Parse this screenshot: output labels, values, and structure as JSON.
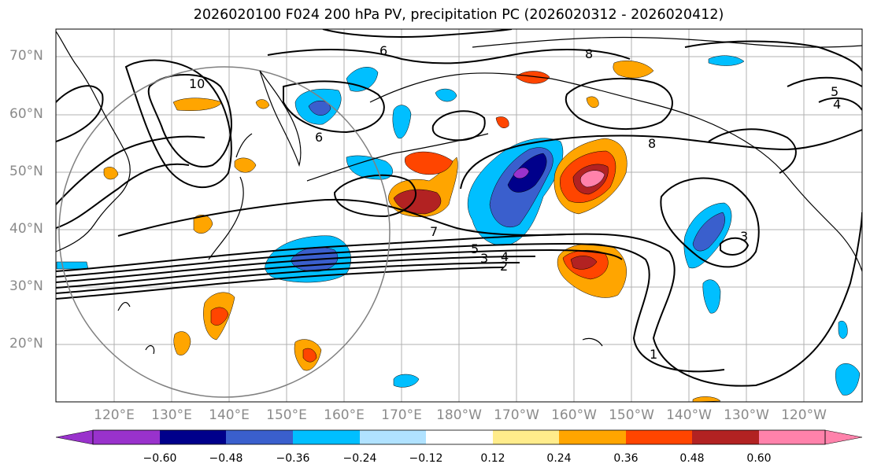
{
  "title": "2026020100 F024 200 hPa PV, precipitation PC (2026020312 - 2026020412)",
  "lat_labels": [
    "70°N",
    "60°N",
    "50°N",
    "40°N",
    "30°N",
    "20°N"
  ],
  "lon_labels": [
    "120°E",
    "130°E",
    "140°E",
    "150°E",
    "160°E",
    "170°E",
    "180°W",
    "170°W",
    "160°W",
    "150°W",
    "140°W",
    "130°W",
    "120°W"
  ],
  "contour_labels": [
    "1",
    "2",
    "3",
    "4",
    "5",
    "6",
    "7",
    "8",
    "10",
    "3",
    "4",
    "5",
    "6",
    "8"
  ],
  "colorbar": {
    "ticks": [
      "−0.60",
      "−0.48",
      "−0.36",
      "−0.24",
      "−0.12",
      "0.12",
      "0.24",
      "0.36",
      "0.48",
      "0.60"
    ],
    "colors": [
      "#9932cc",
      "#00008b",
      "#3a5fcd",
      "#00bfff",
      "#b0e2ff",
      "#ffffff",
      "#ffec8b",
      "#ffa500",
      "#ff4500",
      "#b22222",
      "#ff82ab"
    ]
  },
  "legend_colors": {
    "purple": "#9932cc",
    "navy": "#00008b",
    "blue": "#3a5fcd",
    "cyan": "#00bfff",
    "lightblue": "#b0e2ff",
    "yellow": "#ffec8b",
    "orange": "#ffa500",
    "redorange": "#ff4500",
    "darkred": "#b22222",
    "pink": "#ff82ab"
  }
}
